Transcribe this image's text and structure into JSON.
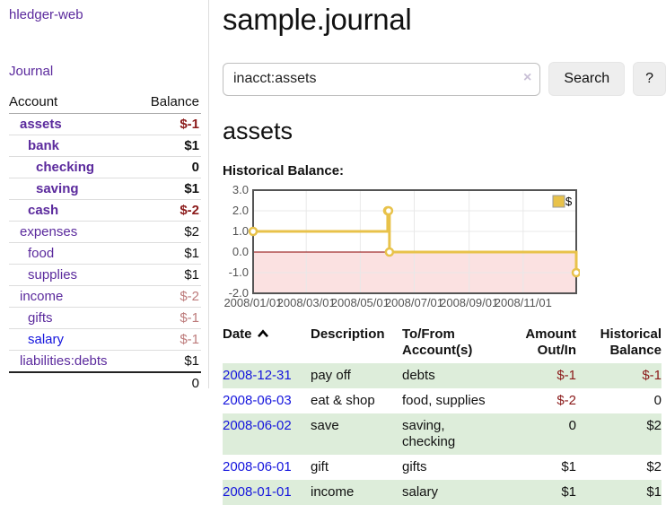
{
  "theme": {
    "purple": "#5b2a9d",
    "blue": "#1515dd",
    "neg_strong": "#8b1a1a",
    "neg_soft": "#bd7b7b",
    "row_green": "#ddedda",
    "chart_line": "#e8c24a",
    "chart_fill_neg": "#fbe1e1",
    "zero_line": "#8b0000",
    "grid": "#e8e8e8",
    "chart_border": "#545454",
    "tick_text": "#545454",
    "divider": "#dddddd",
    "button_bg": "#eeeeee"
  },
  "app": {
    "brand": "hledger-web"
  },
  "sidebar": {
    "nav_journal": "Journal",
    "accounts": {
      "header_account": "Account",
      "header_balance": "Balance",
      "rows": [
        {
          "account": "assets",
          "balance": "$-1",
          "depth": 1,
          "bold": true,
          "tone": "neg-strong"
        },
        {
          "account": "bank",
          "balance": "$1",
          "depth": 2,
          "bold": true
        },
        {
          "account": "checking",
          "balance": "0",
          "depth": 3,
          "bold": true
        },
        {
          "account": "saving",
          "balance": "$1",
          "depth": 3,
          "bold": true
        },
        {
          "account": "cash",
          "balance": "$-2",
          "depth": 2,
          "bold": true,
          "tone": "neg-strong"
        },
        {
          "account": "expenses",
          "balance": "$2",
          "depth": 1
        },
        {
          "account": "food",
          "balance": "$1",
          "depth": 2
        },
        {
          "account": "supplies",
          "balance": "$1",
          "depth": 2
        },
        {
          "account": "income",
          "balance": "$-2",
          "depth": 1,
          "tone": "neg-soft"
        },
        {
          "account": "gifts",
          "balance": "$-1",
          "depth": 2,
          "tone": "neg-soft"
        },
        {
          "account": "salary",
          "balance": "$-1",
          "depth": 2,
          "tone": "neg-soft",
          "blue": true
        },
        {
          "account": "liabilities:debts",
          "balance": "$1",
          "depth": 1
        }
      ],
      "total": "0"
    }
  },
  "main": {
    "title": "sample.journal",
    "search": {
      "value": "inacct:assets",
      "clear_icon": "×",
      "button_label": "Search",
      "help_label": "?"
    },
    "account_heading": "assets",
    "chart_label": "Historical Balance:"
  },
  "chart_data": {
    "type": "line",
    "step": true,
    "title": "Historical Balance",
    "ylim": [
      -2,
      3
    ],
    "yticks": [
      3,
      2,
      1,
      0,
      -1,
      -2
    ],
    "xrange": [
      "2008-01-01",
      "2008-12-31"
    ],
    "xticks": [
      {
        "date": "2008-01-01",
        "label": "2008/01/01"
      },
      {
        "date": "2008-03-01",
        "label": "2008/03/01"
      },
      {
        "date": "2008-05-01",
        "label": "2008/05/01"
      },
      {
        "date": "2008-07-01",
        "label": "2008/07/01"
      },
      {
        "date": "2008-09-01",
        "label": "2008/09/01"
      },
      {
        "date": "2008-11-01",
        "label": "2008/11/01"
      }
    ],
    "legend_position": "top-right",
    "grid": true,
    "series": [
      {
        "name": "$",
        "color": "#e8c24a",
        "points": [
          {
            "date": "2008-01-01",
            "value": 1
          },
          {
            "date": "2008-06-01",
            "value": 2
          },
          {
            "date": "2008-06-02",
            "value": 2
          },
          {
            "date": "2008-06-03",
            "value": 0
          },
          {
            "date": "2008-12-31",
            "value": -1
          }
        ]
      }
    ]
  },
  "register": {
    "headers": {
      "date": "Date",
      "sort": "ascending",
      "description": "Description",
      "tofrom_line1": "To/From",
      "tofrom_line2": "Account(s)",
      "amount_line1": "Amount",
      "amount_line2": "Out/In",
      "balance_line1": "Historical",
      "balance_line2": "Balance"
    },
    "rows": [
      {
        "date": "2008-12-31",
        "description": "pay off",
        "accounts": "debts",
        "amount": "$-1",
        "amount_negative": true,
        "balance": "$-1",
        "balance_negative": true,
        "shaded": true
      },
      {
        "date": "2008-06-03",
        "description": "eat & shop",
        "accounts": "food, supplies",
        "amount": "$-2",
        "amount_negative": true,
        "balance": "0",
        "shaded": false
      },
      {
        "date": "2008-06-02",
        "description": "save",
        "accounts": "saving,\nchecking",
        "amount": "0",
        "balance": "$2",
        "shaded": true
      },
      {
        "date": "2008-06-01",
        "description": "gift",
        "accounts": "gifts",
        "amount": "$1",
        "balance": "$2",
        "shaded": false
      },
      {
        "date": "2008-01-01",
        "description": "income",
        "accounts": "salary",
        "amount": "$1",
        "balance": "$1",
        "shaded": true
      }
    ]
  }
}
